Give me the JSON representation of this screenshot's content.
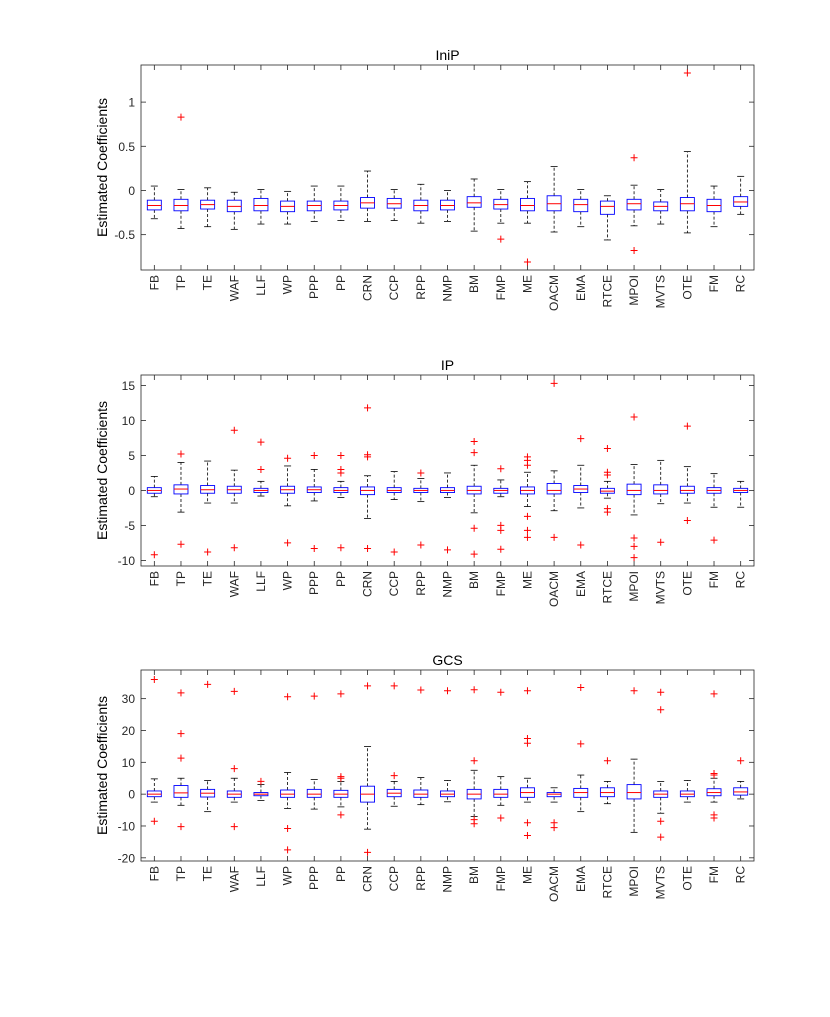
{
  "chart_data": [
    {
      "type": "boxplot",
      "title": "IniP",
      "ylabel": "Estimated Coefficients",
      "xlabel": "",
      "ylim": [
        -0.9,
        1.42
      ],
      "yticks": [
        -0.5,
        0,
        0.5,
        1
      ],
      "ytick_labels": [
        "-0.5",
        "0",
        "0.5",
        "1"
      ],
      "grid": false,
      "categories": [
        "FB",
        "TP",
        "TE",
        "WAF",
        "LLF",
        "WP",
        "PPP",
        "PP",
        "CRN",
        "CCP",
        "RPP",
        "NMP",
        "BM",
        "FMP",
        "ME",
        "OACM",
        "EMA",
        "RTCE",
        "MPOI",
        "MVTS",
        "OTE",
        "FM",
        "RC"
      ],
      "boxes": [
        {
          "min": -0.32,
          "q1": -0.22,
          "median": -0.17,
          "q3": -0.11,
          "max": 0.05,
          "outliers": []
        },
        {
          "min": -0.43,
          "q1": -0.23,
          "median": -0.17,
          "q3": -0.1,
          "max": 0.01,
          "outliers": [
            0.83
          ]
        },
        {
          "min": -0.41,
          "q1": -0.21,
          "median": -0.16,
          "q3": -0.11,
          "max": 0.03,
          "outliers": []
        },
        {
          "min": -0.44,
          "q1": -0.24,
          "median": -0.18,
          "q3": -0.11,
          "max": -0.02,
          "outliers": []
        },
        {
          "min": -0.38,
          "q1": -0.23,
          "median": -0.17,
          "q3": -0.09,
          "max": 0.01,
          "outliers": []
        },
        {
          "min": -0.38,
          "q1": -0.24,
          "median": -0.18,
          "q3": -0.12,
          "max": -0.01,
          "outliers": []
        },
        {
          "min": -0.35,
          "q1": -0.23,
          "median": -0.17,
          "q3": -0.12,
          "max": 0.05,
          "outliers": []
        },
        {
          "min": -0.34,
          "q1": -0.22,
          "median": -0.17,
          "q3": -0.12,
          "max": 0.05,
          "outliers": []
        },
        {
          "min": -0.35,
          "q1": -0.2,
          "median": -0.14,
          "q3": -0.08,
          "max": 0.22,
          "outliers": []
        },
        {
          "min": -0.34,
          "q1": -0.2,
          "median": -0.15,
          "q3": -0.09,
          "max": 0.01,
          "outliers": []
        },
        {
          "min": -0.37,
          "q1": -0.23,
          "median": -0.17,
          "q3": -0.11,
          "max": 0.07,
          "outliers": []
        },
        {
          "min": -0.35,
          "q1": -0.22,
          "median": -0.17,
          "q3": -0.11,
          "max": 0.0,
          "outliers": []
        },
        {
          "min": -0.46,
          "q1": -0.19,
          "median": -0.14,
          "q3": -0.07,
          "max": 0.13,
          "outliers": []
        },
        {
          "min": -0.37,
          "q1": -0.21,
          "median": -0.16,
          "q3": -0.1,
          "max": 0.01,
          "outliers": [
            -0.55
          ]
        },
        {
          "min": -0.37,
          "q1": -0.23,
          "median": -0.17,
          "q3": -0.09,
          "max": 0.1,
          "outliers": [
            -0.81
          ]
        },
        {
          "min": -0.47,
          "q1": -0.23,
          "median": -0.15,
          "q3": -0.06,
          "max": 0.27,
          "outliers": []
        },
        {
          "min": -0.41,
          "q1": -0.24,
          "median": -0.16,
          "q3": -0.1,
          "max": 0.01,
          "outliers": []
        },
        {
          "min": -0.56,
          "q1": -0.27,
          "median": -0.18,
          "q3": -0.12,
          "max": -0.06,
          "outliers": []
        },
        {
          "min": -0.4,
          "q1": -0.22,
          "median": -0.15,
          "q3": -0.1,
          "max": 0.06,
          "outliers": [
            0.37,
            -0.68
          ]
        },
        {
          "min": -0.38,
          "q1": -0.23,
          "median": -0.18,
          "q3": -0.13,
          "max": 0.01,
          "outliers": []
        },
        {
          "min": -0.48,
          "q1": -0.23,
          "median": -0.15,
          "q3": -0.08,
          "max": 0.44,
          "outliers": [
            1.33
          ]
        },
        {
          "min": -0.41,
          "q1": -0.24,
          "median": -0.17,
          "q3": -0.1,
          "max": 0.05,
          "outliers": []
        },
        {
          "min": -0.27,
          "q1": -0.18,
          "median": -0.13,
          "q3": -0.07,
          "max": 0.16,
          "outliers": []
        }
      ]
    },
    {
      "type": "boxplot",
      "title": "IP",
      "ylabel": "Estimated Coefficients",
      "xlabel": "",
      "ylim": [
        -10.8,
        16.5
      ],
      "yticks": [
        -10,
        -5,
        0,
        5,
        10,
        15
      ],
      "ytick_labels": [
        "-10",
        "-5",
        "0",
        "5",
        "10",
        "15"
      ],
      "grid": false,
      "categories": [
        "FB",
        "TP",
        "TE",
        "WAF",
        "LLF",
        "WP",
        "PPP",
        "PP",
        "CRN",
        "CCP",
        "RPP",
        "NMP",
        "BM",
        "FMP",
        "ME",
        "OACM",
        "EMA",
        "RTCE",
        "MPOI",
        "MVTS",
        "OTE",
        "FM",
        "RC"
      ],
      "boxes": [
        {
          "min": -0.9,
          "q1": -0.4,
          "median": 0.0,
          "q3": 0.4,
          "max": 2.0,
          "outliers": [
            -9.2
          ]
        },
        {
          "min": -3.1,
          "q1": -0.5,
          "median": 0.2,
          "q3": 0.8,
          "max": 4.0,
          "outliers": [
            5.2,
            -7.7
          ]
        },
        {
          "min": -1.8,
          "q1": -0.4,
          "median": 0.1,
          "q3": 0.7,
          "max": 4.2,
          "outliers": [
            -8.8
          ]
        },
        {
          "min": -1.8,
          "q1": -0.4,
          "median": 0.1,
          "q3": 0.6,
          "max": 2.9,
          "outliers": [
            8.6,
            -8.2
          ]
        },
        {
          "min": -0.8,
          "q1": -0.3,
          "median": 0.0,
          "q3": 0.3,
          "max": 1.3,
          "outliers": [
            6.9,
            3.0
          ]
        },
        {
          "min": -2.2,
          "q1": -0.4,
          "median": 0.1,
          "q3": 0.6,
          "max": 3.5,
          "outliers": [
            4.6,
            -7.5
          ]
        },
        {
          "min": -1.5,
          "q1": -0.3,
          "median": 0.1,
          "q3": 0.5,
          "max": 3.0,
          "outliers": [
            5.0,
            -8.3
          ]
        },
        {
          "min": -1.0,
          "q1": -0.3,
          "median": 0.0,
          "q3": 0.4,
          "max": 1.3,
          "outliers": [
            5.0,
            3.0,
            2.5,
            -8.2
          ]
        },
        {
          "min": -4.0,
          "q1": -0.6,
          "median": 0.0,
          "q3": 0.5,
          "max": 2.1,
          "outliers": [
            11.8,
            5.1,
            4.8,
            -8.3
          ]
        },
        {
          "min": -1.3,
          "q1": -0.3,
          "median": 0.0,
          "q3": 0.4,
          "max": 2.7,
          "outliers": [
            -8.8
          ]
        },
        {
          "min": -1.6,
          "q1": -0.3,
          "median": 0.0,
          "q3": 0.3,
          "max": 1.7,
          "outliers": [
            2.5,
            -7.8
          ]
        },
        {
          "min": -1.0,
          "q1": -0.3,
          "median": 0.0,
          "q3": 0.4,
          "max": 2.5,
          "outliers": [
            -8.5
          ]
        },
        {
          "min": -3.2,
          "q1": -0.5,
          "median": 0.0,
          "q3": 0.6,
          "max": 3.6,
          "outliers": [
            7.0,
            5.4,
            -5.4,
            -9.1
          ]
        },
        {
          "min": -0.9,
          "q1": -0.4,
          "median": 0.0,
          "q3": 0.3,
          "max": 1.5,
          "outliers": [
            3.1,
            -5.0,
            -5.7,
            -8.4
          ]
        },
        {
          "min": -2.3,
          "q1": -0.5,
          "median": 0.0,
          "q3": 0.5,
          "max": 2.6,
          "outliers": [
            4.8,
            4.3,
            3.6,
            -3.7,
            -5.7,
            -6.7
          ]
        },
        {
          "min": -2.9,
          "q1": -0.5,
          "median": 0.0,
          "q3": 1.0,
          "max": 2.8,
          "outliers": [
            15.3,
            -6.7
          ]
        },
        {
          "min": -2.5,
          "q1": -0.3,
          "median": 0.2,
          "q3": 0.7,
          "max": 3.6,
          "outliers": [
            7.4,
            -7.8
          ]
        },
        {
          "min": -1.1,
          "q1": -0.4,
          "median": -0.1,
          "q3": 0.3,
          "max": 1.3,
          "outliers": [
            6.0,
            2.6,
            2.2,
            -2.6,
            -3.1
          ]
        },
        {
          "min": -3.5,
          "q1": -0.6,
          "median": 0.0,
          "q3": 0.9,
          "max": 3.7,
          "outliers": [
            10.5,
            -6.8,
            -8.0,
            -9.6
          ]
        },
        {
          "min": -1.9,
          "q1": -0.5,
          "median": 0.0,
          "q3": 0.8,
          "max": 4.3,
          "outliers": [
            -7.4
          ]
        },
        {
          "min": -1.8,
          "q1": -0.4,
          "median": 0.0,
          "q3": 0.6,
          "max": 3.4,
          "outliers": [
            9.2,
            -4.3
          ]
        },
        {
          "min": -2.4,
          "q1": -0.4,
          "median": 0.0,
          "q3": 0.4,
          "max": 2.4,
          "outliers": [
            -7.1
          ]
        },
        {
          "min": -2.4,
          "q1": -0.3,
          "median": 0.0,
          "q3": 0.3,
          "max": 1.3,
          "outliers": []
        }
      ]
    },
    {
      "type": "boxplot",
      "title": "GCS",
      "ylabel": "Estimated Coefficients",
      "xlabel": "",
      "ylim": [
        -21,
        39
      ],
      "yticks": [
        -20,
        -10,
        0,
        10,
        20,
        30
      ],
      "ytick_labels": [
        "-20",
        "-10",
        "0",
        "10",
        "20",
        "30"
      ],
      "grid": false,
      "categories": [
        "FB",
        "TP",
        "TE",
        "WAF",
        "LLF",
        "WP",
        "PPP",
        "PP",
        "CRN",
        "CCP",
        "RPP",
        "NMP",
        "BM",
        "FMP",
        "ME",
        "OACM",
        "EMA",
        "RTCE",
        "MPOI",
        "MVTS",
        "OTE",
        "FM",
        "RC"
      ],
      "boxes": [
        {
          "min": -2.5,
          "q1": -0.8,
          "median": 0.0,
          "q3": 1.0,
          "max": 4.8,
          "outliers": [
            36.0,
            -8.5
          ]
        },
        {
          "min": -3.5,
          "q1": -1.0,
          "median": 0.4,
          "q3": 2.7,
          "max": 5.0,
          "outliers": [
            31.8,
            19.0,
            11.3,
            -10.2
          ]
        },
        {
          "min": -5.5,
          "q1": -0.9,
          "median": 0.3,
          "q3": 1.5,
          "max": 4.3,
          "outliers": [
            34.5
          ]
        },
        {
          "min": -2.5,
          "q1": -1.0,
          "median": 0.0,
          "q3": 1.0,
          "max": 5.0,
          "outliers": [
            32.3,
            8.0,
            -10.2
          ]
        },
        {
          "min": -2.0,
          "q1": -0.5,
          "median": 0.0,
          "q3": 0.5,
          "max": 3.0,
          "outliers": [
            4.0
          ]
        },
        {
          "min": -4.5,
          "q1": -1.0,
          "median": 0.0,
          "q3": 1.3,
          "max": 6.8,
          "outliers": [
            30.6,
            -10.8,
            -17.5
          ]
        },
        {
          "min": -4.7,
          "q1": -1.0,
          "median": 0.0,
          "q3": 1.5,
          "max": 4.6,
          "outliers": [
            30.8
          ]
        },
        {
          "min": -4.0,
          "q1": -1.0,
          "median": 0.0,
          "q3": 1.2,
          "max": 4.0,
          "outliers": [
            31.5,
            5.5,
            5.0,
            -6.5
          ]
        },
        {
          "min": -11.0,
          "q1": -2.5,
          "median": 0.0,
          "q3": 2.5,
          "max": 15.0,
          "outliers": [
            34.0,
            -18.3
          ]
        },
        {
          "min": -3.8,
          "q1": -0.8,
          "median": 0.3,
          "q3": 1.5,
          "max": 4.0,
          "outliers": [
            34.0,
            5.8
          ]
        },
        {
          "min": -3.3,
          "q1": -1.0,
          "median": 0.0,
          "q3": 1.3,
          "max": 5.2,
          "outliers": [
            32.7
          ]
        },
        {
          "min": -2.4,
          "q1": -0.8,
          "median": 0.0,
          "q3": 1.0,
          "max": 4.3,
          "outliers": [
            32.5
          ]
        },
        {
          "min": -7.0,
          "q1": -1.5,
          "median": 0.0,
          "q3": 1.5,
          "max": 7.5,
          "outliers": [
            32.8,
            10.5,
            -8.0,
            -9.3
          ]
        },
        {
          "min": -3.5,
          "q1": -1.0,
          "median": 0.0,
          "q3": 1.5,
          "max": 5.5,
          "outliers": [
            32.0,
            -7.5
          ]
        },
        {
          "min": -2.5,
          "q1": -1.0,
          "median": 0.5,
          "q3": 2.0,
          "max": 5.0,
          "outliers": [
            32.5,
            17.5,
            16.0,
            -9.0,
            -13.0
          ]
        },
        {
          "min": -2.5,
          "q1": -0.8,
          "median": 0.0,
          "q3": 0.5,
          "max": 2.0,
          "outliers": [
            -9.0,
            -10.5
          ]
        },
        {
          "min": -5.5,
          "q1": -1.0,
          "median": 0.5,
          "q3": 1.8,
          "max": 6.0,
          "outliers": [
            33.5,
            15.8
          ]
        },
        {
          "min": -3.0,
          "q1": -0.8,
          "median": 0.5,
          "q3": 2.0,
          "max": 4.0,
          "outliers": [
            10.5
          ]
        },
        {
          "min": -12.0,
          "q1": -1.5,
          "median": 0.5,
          "q3": 3.0,
          "max": 11.0,
          "outliers": [
            32.5
          ]
        },
        {
          "min": -6.0,
          "q1": -1.0,
          "median": 0.0,
          "q3": 1.0,
          "max": 4.0,
          "outliers": [
            32.0,
            26.5,
            -8.5,
            -13.5
          ]
        },
        {
          "min": -2.5,
          "q1": -0.8,
          "median": 0.0,
          "q3": 1.0,
          "max": 4.3,
          "outliers": []
        },
        {
          "min": -2.5,
          "q1": -0.5,
          "median": 0.5,
          "q3": 1.7,
          "max": 5.0,
          "outliers": [
            31.5,
            6.5,
            6.0,
            -6.5,
            -7.5
          ]
        },
        {
          "min": -1.5,
          "q1": -0.3,
          "median": 0.7,
          "q3": 2.0,
          "max": 4.0,
          "outliers": [
            10.5
          ]
        }
      ]
    }
  ],
  "colors": {
    "box": "#0000ff",
    "median": "#ff0000",
    "outlier": "#ff0000",
    "whisker": "#000000",
    "axes": "#262626"
  }
}
